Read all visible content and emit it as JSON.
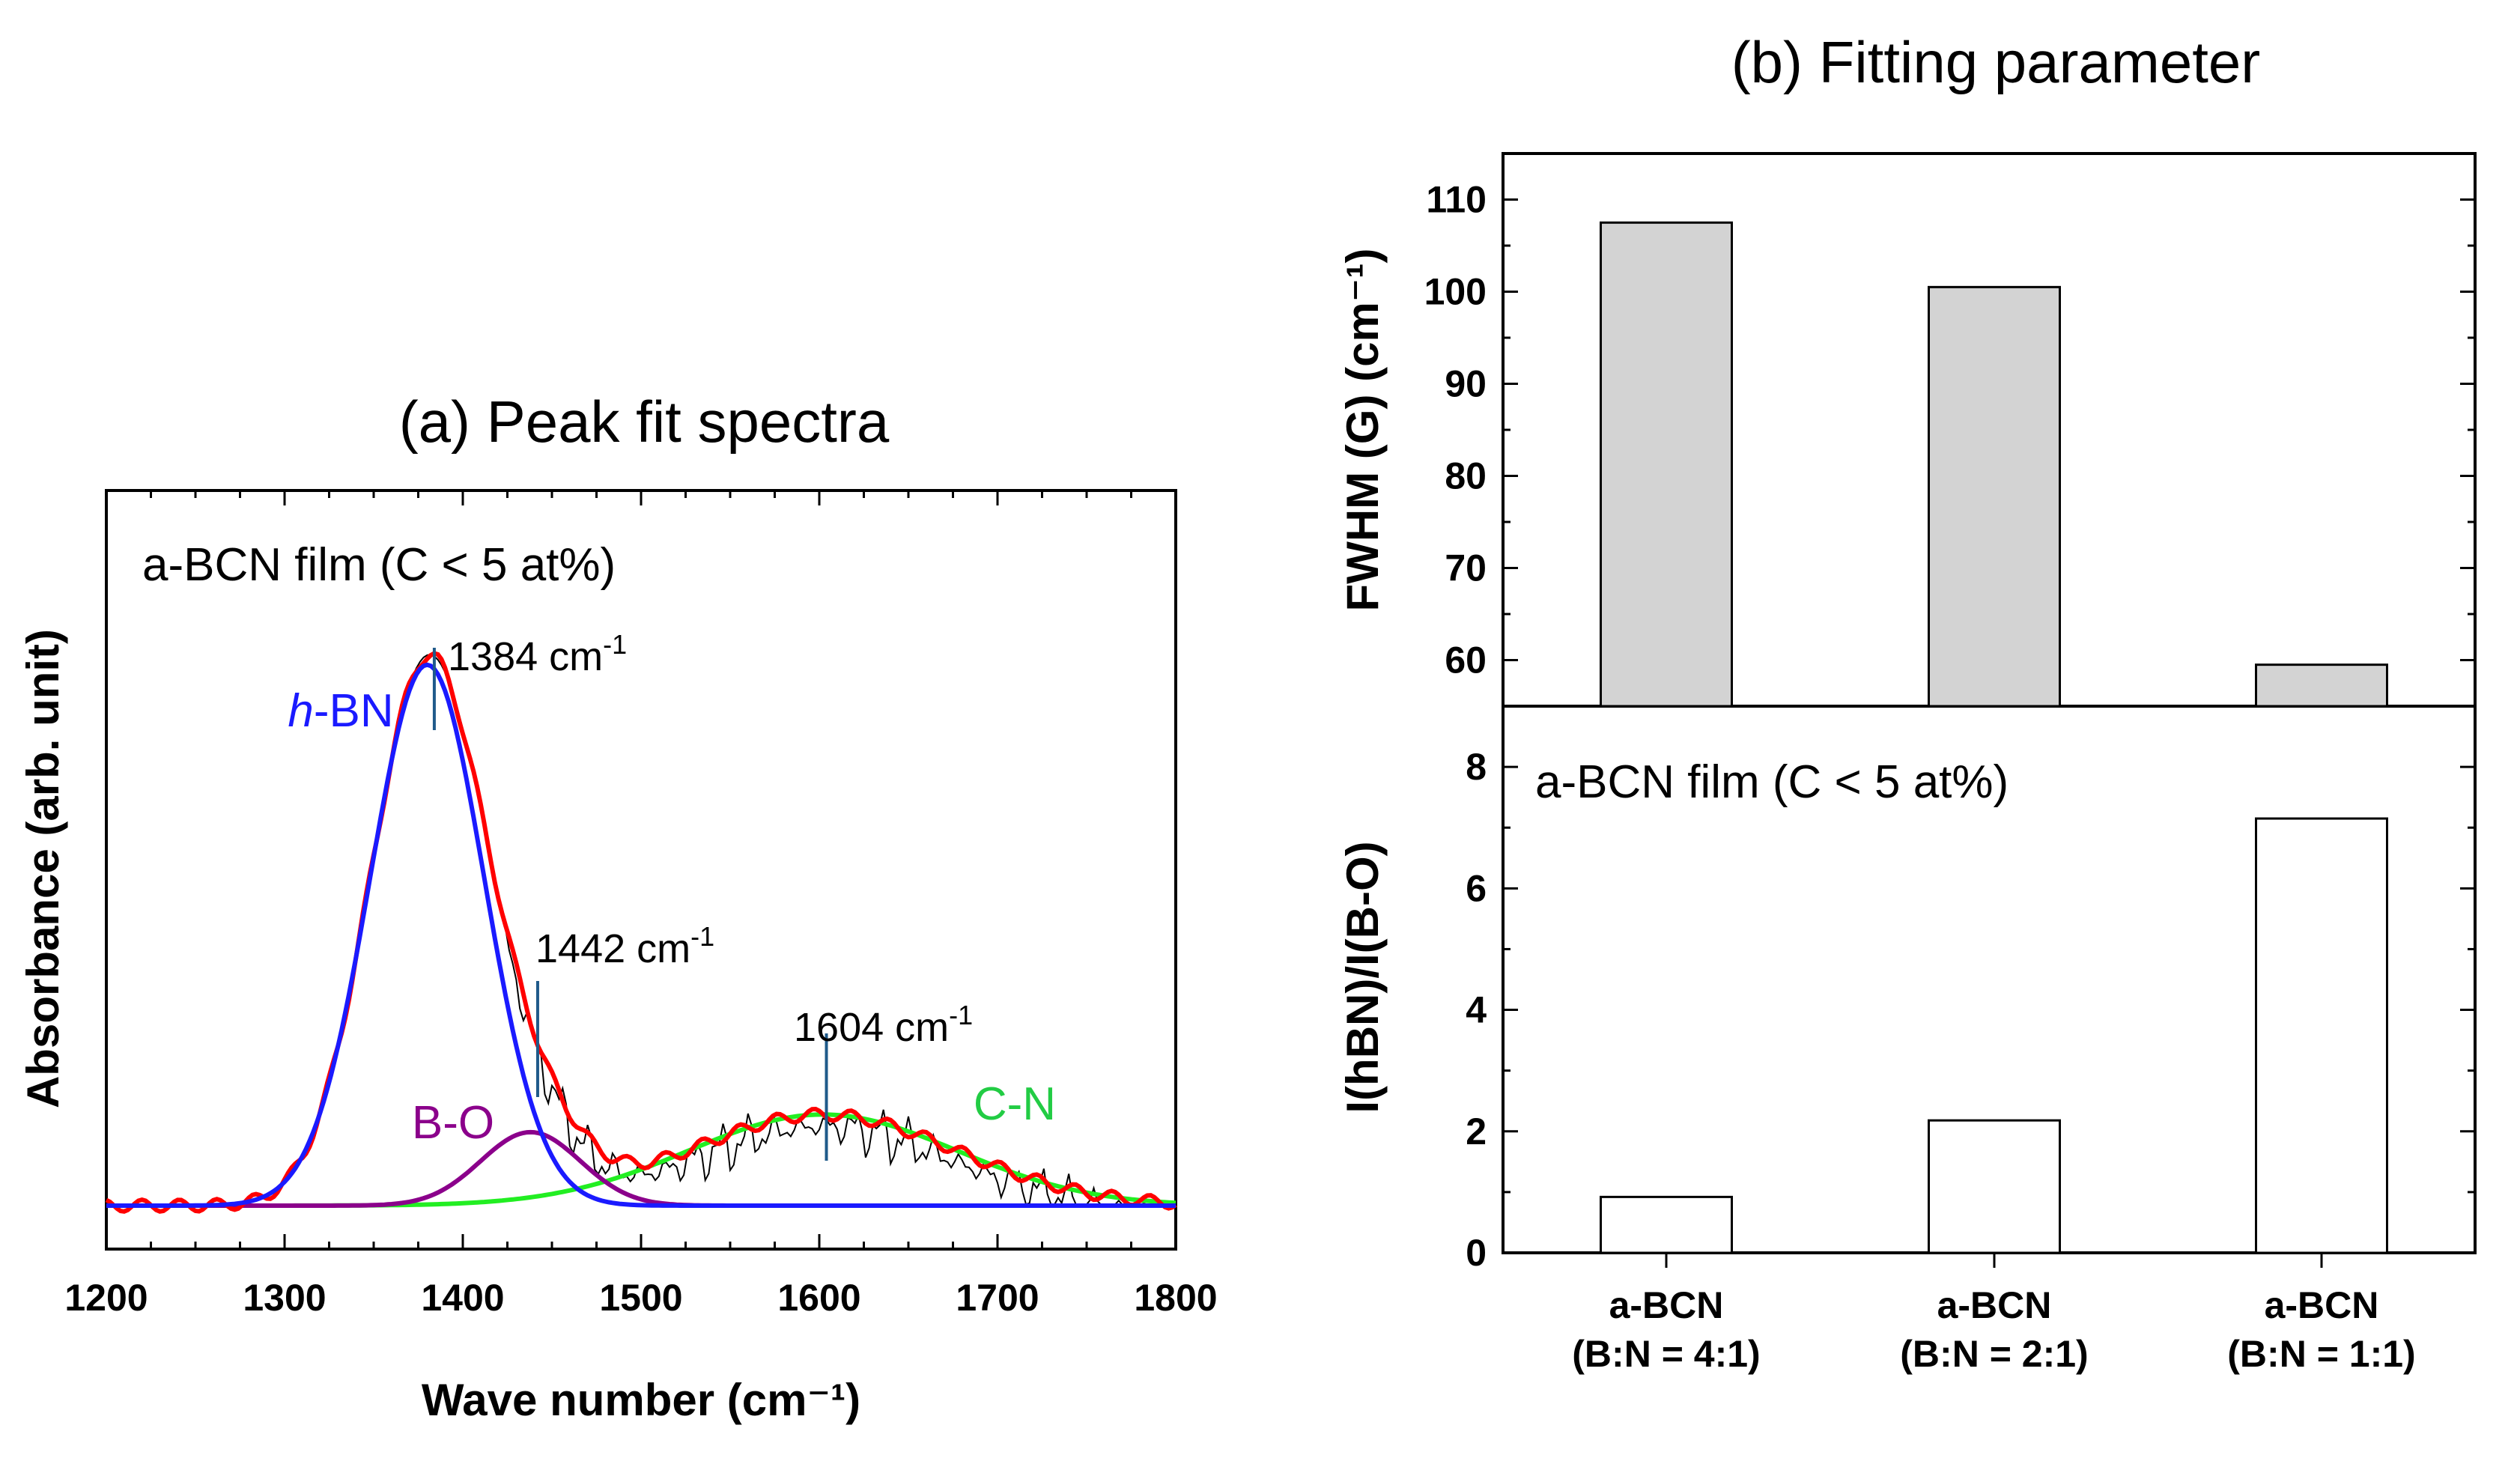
{
  "colors": {
    "hbn": "#1a1aff",
    "bo": "#8b008b",
    "cn": "#22ee22",
    "fit": "#ff0000",
    "data": "#000000",
    "marker": "#1f5a8a",
    "bar_gray": "#d3d3d3",
    "bar_white": "#ffffff"
  },
  "chart_data": [
    {
      "id": "a",
      "type": "line",
      "title": "(a) Peak fit spectra",
      "xlabel": "Wave number (cm⁻¹)",
      "ylabel": "Absorbance (arb. unit)",
      "xlim": [
        1200,
        1800
      ],
      "ylim": [
        0,
        1.15
      ],
      "xticks": [
        "1200",
        "1300",
        "1400",
        "1500",
        "1600",
        "1700",
        "1800"
      ],
      "film_label": "a-BCN film  (C < 5 at%)",
      "components": [
        {
          "name": "h-BN",
          "label_italic": "h",
          "label_rest": "-BN",
          "center": 1380,
          "sigma": 32,
          "amplitude": 0.92
        },
        {
          "name": "B-O",
          "label": "B-O",
          "center": 1438,
          "sigma": 28,
          "amplitude": 0.125
        },
        {
          "name": "C-N",
          "label": "C-N",
          "center": 1602,
          "sigma": 75,
          "amplitude": 0.155
        }
      ],
      "peak_markers": [
        {
          "value": 1384,
          "label": "1384 cm",
          "sup": "-1"
        },
        {
          "value": 1442,
          "label": "1442 cm",
          "sup": "-1"
        },
        {
          "value": 1604,
          "label": "1604 cm",
          "sup": "-1"
        }
      ]
    },
    {
      "id": "b-top",
      "type": "bar",
      "title": "(b) Fitting parameter",
      "ylabel": "FWHM (G) (cm⁻¹)",
      "ylim": [
        55,
        115
      ],
      "yticks": [
        60,
        70,
        80,
        90,
        100,
        110
      ],
      "categories": [
        "a-BCN (B:N = 4:1)",
        "a-BCN (B:N = 2:1)",
        "a-BCN (B:N = 1:1)"
      ],
      "values": [
        107.5,
        100.5,
        59.5
      ]
    },
    {
      "id": "b-bottom",
      "type": "bar",
      "ylabel": "I(hBN)/I(B-O)",
      "ylim": [
        0,
        9
      ],
      "yticks": [
        0,
        2,
        4,
        6,
        8
      ],
      "film_label": "a-BCN film  (C < 5 at%)",
      "categories": [
        "a-BCN (B:N = 4:1)",
        "a-BCN (B:N = 2:1)",
        "a-BCN (B:N = 1:1)"
      ],
      "category_lines": [
        [
          "a-BCN",
          "(B:N = 4:1)"
        ],
        [
          "a-BCN",
          "(B:N = 2:1)"
        ],
        [
          "a-BCN",
          "(B:N = 1:1)"
        ]
      ],
      "values": [
        0.92,
        2.18,
        7.15
      ]
    }
  ]
}
